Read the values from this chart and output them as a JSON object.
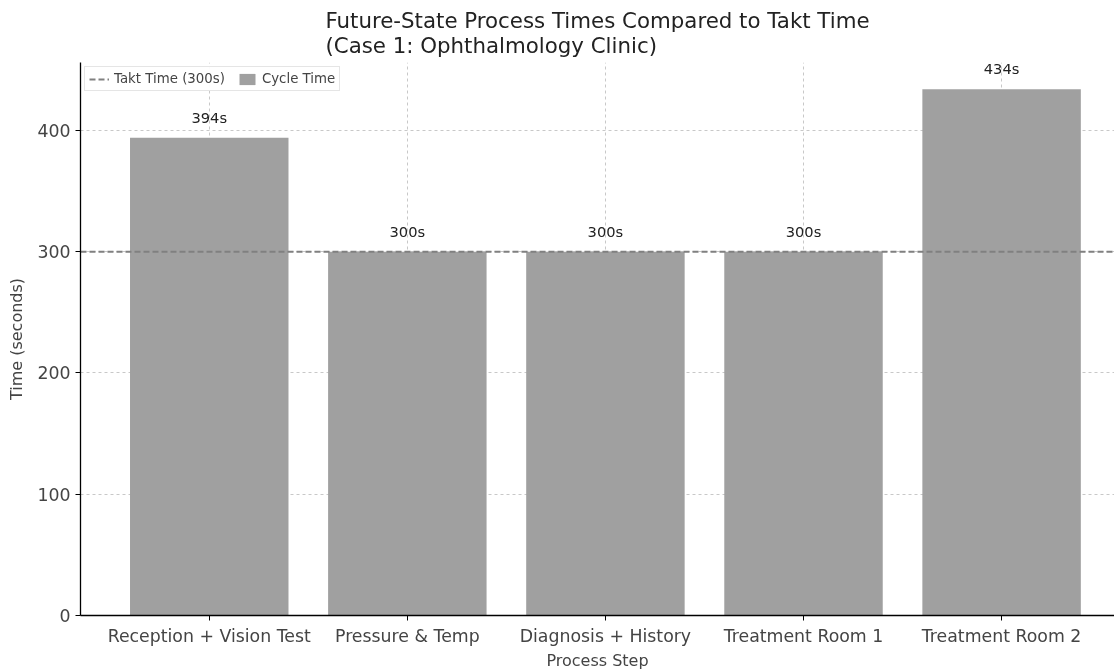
{
  "chart_data": {
    "type": "bar",
    "title": "Future-State Process Times Compared to Takt Time\n(Case 1: Ophthalmology Clinic)",
    "xlabel": "Process Step",
    "ylabel": "Time (seconds)",
    "categories": [
      "Reception + Vision Test",
      "Pressure & Temp",
      "Diagnosis + History",
      "Treatment Room 1",
      "Treatment Room 2"
    ],
    "series": [
      {
        "name": "Cycle Time",
        "color": "#a0a0a0",
        "values": [
          394,
          300,
          300,
          300,
          434
        ],
        "value_labels": [
          "394s",
          "300s",
          "300s",
          "300s",
          "434s"
        ]
      }
    ],
    "ylim": [
      0,
      456
    ],
    "yticks": [
      0,
      100,
      200,
      300,
      400
    ],
    "ref_lines": [
      {
        "axis": "y",
        "value": 300,
        "label": "Takt Time (300s)",
        "color": "#808080",
        "line_style": "dashed"
      }
    ],
    "grid": true,
    "legend": "top left"
  }
}
